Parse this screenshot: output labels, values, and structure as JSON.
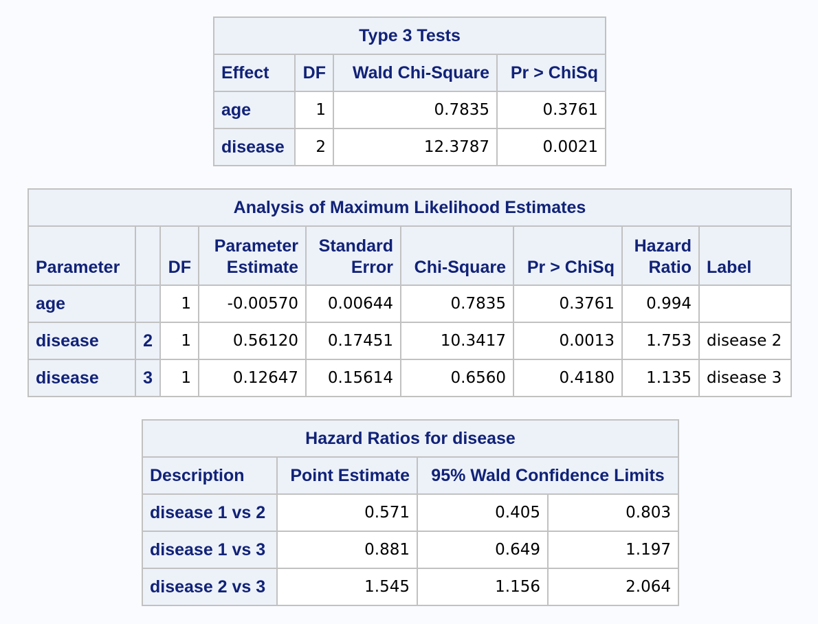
{
  "type3": {
    "title": "Type 3 Tests",
    "headers": [
      "Effect",
      "DF",
      "Wald Chi-Square",
      "Pr > ChiSq"
    ],
    "rows": [
      [
        "age",
        "1",
        "0.7835",
        "0.3761"
      ],
      [
        "disease",
        "2",
        "12.3787",
        "0.0021"
      ]
    ]
  },
  "mle": {
    "title": "Analysis of Maximum Likelihood Estimates",
    "headers": {
      "parameter": "Parameter",
      "blank": "",
      "df": "DF",
      "estimate_l1": "Parameter",
      "estimate_l2": "Estimate",
      "stderr_l1": "Standard",
      "stderr_l2": "Error",
      "chisq": "Chi-Square",
      "prchisq": "Pr > ChiSq",
      "hr_l1": "Hazard",
      "hr_l2": "Ratio",
      "label": "Label"
    },
    "rows": [
      [
        "age",
        "",
        "1",
        "-0.00570",
        "0.00644",
        "0.7835",
        "0.3761",
        "0.994",
        ""
      ],
      [
        "disease",
        "2",
        "1",
        "0.56120",
        "0.17451",
        "10.3417",
        "0.0013",
        "1.753",
        "disease 2"
      ],
      [
        "disease",
        "3",
        "1",
        "0.12647",
        "0.15614",
        "0.6560",
        "0.4180",
        "1.135",
        "disease 3"
      ]
    ]
  },
  "hazard": {
    "title": "Hazard Ratios for disease",
    "headers": [
      "Description",
      "Point Estimate",
      "95% Wald Confidence Limits"
    ],
    "rows": [
      [
        "disease 1 vs 2",
        "0.571",
        "0.405",
        "0.803"
      ],
      [
        "disease 1 vs 3",
        "0.881",
        "0.649",
        "1.197"
      ],
      [
        "disease 2 vs 3",
        "1.545",
        "1.156",
        "2.064"
      ]
    ]
  }
}
